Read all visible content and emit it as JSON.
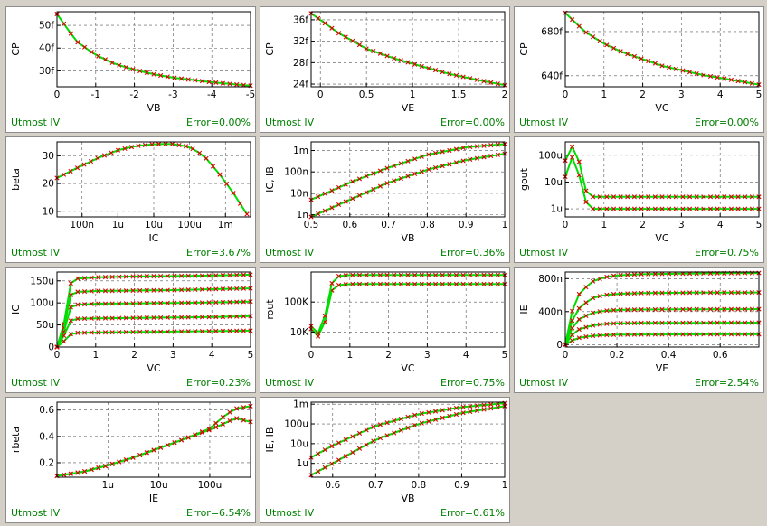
{
  "colors": {
    "measured": "#e00000",
    "simulated": "#00dd00",
    "footer_text": "#008000",
    "grid": "#555555"
  },
  "chart_data": [
    {
      "id": "cp-vb",
      "type": "scatter",
      "xlabel": "VB",
      "ylabel": "CP",
      "xlim": [
        0,
        -5
      ],
      "ylim": [
        23,
        56
      ],
      "yscale": "linear",
      "xticks": [
        {
          "v": 0,
          "t": "0"
        },
        {
          "v": -1,
          "t": "-1"
        },
        {
          "v": -2,
          "t": "-2"
        },
        {
          "v": -3,
          "t": "-3"
        },
        {
          "v": -4,
          "t": "-4"
        },
        {
          "v": -5,
          "t": "-5"
        }
      ],
      "yticks": [
        {
          "v": 30,
          "t": "30f"
        },
        {
          "v": 40,
          "t": "40f"
        },
        {
          "v": 50,
          "t": "50f"
        }
      ],
      "footer": {
        "tool": "Utmost IV",
        "error": "Error=0.00%"
      },
      "series": [
        {
          "x": [
            0,
            -0.5,
            -1,
            -1.5,
            -2,
            -2.5,
            -3,
            -3.5,
            -4,
            -4.5,
            -5
          ],
          "y": [
            55,
            43,
            37,
            33,
            30.5,
            28.5,
            27,
            26,
            25,
            24.2,
            23.5
          ]
        }
      ]
    },
    {
      "id": "cp-ve",
      "type": "scatter",
      "xlabel": "VE",
      "ylabel": "CP",
      "xlim": [
        -0.1,
        2
      ],
      "ylim": [
        23.5,
        37.5
      ],
      "yscale": "linear",
      "xticks": [
        {
          "v": 0,
          "t": "0"
        },
        {
          "v": 0.5,
          "t": "0.5"
        },
        {
          "v": 1,
          "t": "1"
        },
        {
          "v": 1.5,
          "t": "1.5"
        },
        {
          "v": 2,
          "t": "2"
        }
      ],
      "yticks": [
        {
          "v": 24,
          "t": "24f"
        },
        {
          "v": 28,
          "t": "28f"
        },
        {
          "v": 32,
          "t": "32f"
        },
        {
          "v": 36,
          "t": "36f"
        }
      ],
      "footer": {
        "tool": "Utmost IV",
        "error": "Error=0.00%"
      },
      "series": [
        {
          "x": [
            -0.1,
            0.2,
            0.5,
            0.8,
            1.1,
            1.4,
            1.7,
            2
          ],
          "y": [
            37.2,
            33.5,
            30.6,
            28.8,
            27.3,
            25.9,
            24.8,
            23.8
          ]
        }
      ]
    },
    {
      "id": "cp-vc",
      "type": "scatter",
      "xlabel": "VC",
      "ylabel": "CP",
      "xlim": [
        0,
        5
      ],
      "ylim": [
        630,
        698
      ],
      "yscale": "linear",
      "xticks": [
        {
          "v": 0,
          "t": "0"
        },
        {
          "v": 1,
          "t": "1"
        },
        {
          "v": 2,
          "t": "2"
        },
        {
          "v": 3,
          "t": "3"
        },
        {
          "v": 4,
          "t": "4"
        },
        {
          "v": 5,
          "t": "5"
        }
      ],
      "yticks": [
        {
          "v": 640,
          "t": "640f"
        },
        {
          "v": 680,
          "t": "680f"
        }
      ],
      "footer": {
        "tool": "Utmost IV",
        "error": "Error=0.00%"
      },
      "series": [
        {
          "x": [
            0,
            0.5,
            1,
            1.5,
            2,
            2.5,
            3,
            3.5,
            4,
            4.5,
            5
          ],
          "y": [
            697,
            680,
            669,
            661,
            655,
            649,
            645,
            641,
            638,
            635,
            632
          ]
        }
      ]
    },
    {
      "id": "beta-ic",
      "type": "scatter",
      "xlabel": "IC",
      "ylabel": "beta",
      "xlim": [
        -7.7,
        -2.3
      ],
      "ylim": [
        8,
        35
      ],
      "yscale": "linear",
      "xticks": [
        {
          "v": -7,
          "t": "100n"
        },
        {
          "v": -6,
          "t": "1u"
        },
        {
          "v": -5,
          "t": "10u"
        },
        {
          "v": -4,
          "t": "100u"
        },
        {
          "v": -3,
          "t": "1m"
        }
      ],
      "yticks": [
        {
          "v": 10,
          "t": "10"
        },
        {
          "v": 20,
          "t": "20"
        },
        {
          "v": 30,
          "t": "30"
        }
      ],
      "footer": {
        "tool": "Utmost IV",
        "error": "Error=3.67%"
      },
      "series": [
        {
          "x": [
            -7.7,
            -7,
            -6.5,
            -6,
            -5.5,
            -5,
            -4.5,
            -4,
            -3.6,
            -3.2,
            -2.8,
            -2.4
          ],
          "y": [
            22,
            26.5,
            29.5,
            32,
            33.5,
            34.2,
            34.3,
            33.2,
            30,
            24,
            17,
            9
          ]
        }
      ]
    },
    {
      "id": "ic-ib-vb",
      "type": "scatter",
      "xlabel": "VB",
      "ylabel": "IC, IB",
      "xlim": [
        0.5,
        1
      ],
      "ylim": [
        -0.1,
        3.4
      ],
      "yscale": "log",
      "xticks": [
        {
          "v": 0.5,
          "t": "0.5"
        },
        {
          "v": 0.6,
          "t": "0.6"
        },
        {
          "v": 0.7,
          "t": "0.7"
        },
        {
          "v": 0.8,
          "t": "0.8"
        },
        {
          "v": 0.9,
          "t": "0.9"
        },
        {
          "v": 1,
          "t": "1"
        }
      ],
      "yticks": [
        {
          "v": 0,
          "t": "1n"
        },
        {
          "v": 1,
          "t": "10n"
        },
        {
          "v": 2,
          "t": "100n"
        },
        {
          "v": 3,
          "t": "1m"
        }
      ],
      "footer": {
        "tool": "Utmost IV",
        "error": "Error=0.36%"
      },
      "series": [
        {
          "x": [
            0.5,
            0.6,
            0.7,
            0.8,
            0.9,
            1
          ],
          "y": [
            0.7,
            1.5,
            2.2,
            2.8,
            3.15,
            3.3
          ]
        },
        {
          "x": [
            0.5,
            0.6,
            0.7,
            0.8,
            0.9,
            1
          ],
          "y": [
            -0.1,
            0.7,
            1.5,
            2.1,
            2.55,
            2.85
          ]
        }
      ]
    },
    {
      "id": "gout-vc",
      "type": "scatter",
      "xlabel": "VC",
      "ylabel": "gout",
      "xlim": [
        0,
        5
      ],
      "ylim": [
        -0.3,
        2.5
      ],
      "yscale": "log",
      "xticks": [
        {
          "v": 0,
          "t": "0"
        },
        {
          "v": 1,
          "t": "1"
        },
        {
          "v": 2,
          "t": "2"
        },
        {
          "v": 3,
          "t": "3"
        },
        {
          "v": 4,
          "t": "4"
        },
        {
          "v": 5,
          "t": "5"
        }
      ],
      "yticks": [
        {
          "v": 0,
          "t": "1u"
        },
        {
          "v": 1,
          "t": "10u"
        },
        {
          "v": 2,
          "t": "100u"
        }
      ],
      "footer": {
        "tool": "Utmost IV",
        "error": "Error=0.75%"
      },
      "series": [
        {
          "x": [
            0,
            0.1,
            0.2,
            0.3,
            0.4,
            0.5,
            0.6,
            1,
            2,
            3,
            4,
            5
          ],
          "y": [
            1.8,
            2.4,
            2.3,
            2.1,
            1.5,
            0.8,
            0.45,
            0.45,
            0.45,
            0.45,
            0.45,
            0.45
          ]
        },
        {
          "x": [
            0,
            0.1,
            0.2,
            0.3,
            0.4,
            0.5,
            0.6,
            1,
            2,
            3,
            4,
            5
          ],
          "y": [
            1.2,
            2.0,
            1.9,
            1.6,
            1.0,
            0.4,
            0.0,
            0.0,
            0.0,
            0.0,
            0.0,
            0.0
          ]
        }
      ]
    },
    {
      "id": "ic-vc",
      "type": "scatter",
      "xlabel": "VC",
      "ylabel": "IC",
      "xlim": [
        0,
        5
      ],
      "ylim": [
        0,
        170
      ],
      "yscale": "linear",
      "xticks": [
        {
          "v": 0,
          "t": "0"
        },
        {
          "v": 1,
          "t": "1"
        },
        {
          "v": 2,
          "t": "2"
        },
        {
          "v": 3,
          "t": "3"
        },
        {
          "v": 4,
          "t": "4"
        },
        {
          "v": 5,
          "t": "5"
        }
      ],
      "yticks": [
        {
          "v": 0,
          "t": "0"
        },
        {
          "v": 50,
          "t": "50u"
        },
        {
          "v": 100,
          "t": "100u"
        },
        {
          "v": 150,
          "t": "150u"
        }
      ],
      "footer": {
        "tool": "Utmost IV",
        "error": "Error=0.23%"
      },
      "series": [
        {
          "x": [
            0,
            0.1,
            0.2,
            0.3,
            0.5,
            1,
            2,
            3,
            4,
            5
          ],
          "y": [
            0,
            25,
            60,
            140,
            155,
            158,
            160,
            161,
            162,
            164
          ]
        },
        {
          "x": [
            0,
            0.1,
            0.2,
            0.3,
            0.5,
            1,
            2,
            3,
            4,
            5
          ],
          "y": [
            0,
            20,
            50,
            115,
            125,
            127,
            128,
            129,
            131,
            133
          ]
        },
        {
          "x": [
            0,
            0.1,
            0.2,
            0.3,
            0.5,
            1,
            2,
            3,
            4,
            5
          ],
          "y": [
            0,
            15,
            40,
            88,
            96,
            98,
            99,
            100,
            101,
            103
          ]
        },
        {
          "x": [
            0,
            0.1,
            0.2,
            0.3,
            0.5,
            1,
            2,
            3,
            4,
            5
          ],
          "y": [
            0,
            10,
            30,
            58,
            64,
            65,
            66,
            67,
            68,
            70
          ]
        },
        {
          "x": [
            0,
            0.1,
            0.2,
            0.3,
            0.5,
            1,
            2,
            3,
            4,
            5
          ],
          "y": [
            0,
            5,
            15,
            28,
            32,
            33,
            34,
            35,
            36,
            37
          ]
        }
      ]
    },
    {
      "id": "rout-vc",
      "type": "scatter",
      "xlabel": "VC",
      "ylabel": "rout",
      "xlim": [
        0,
        5
      ],
      "ylim": [
        3.5,
        6.0
      ],
      "yscale": "log",
      "xticks": [
        {
          "v": 0,
          "t": "0"
        },
        {
          "v": 1,
          "t": "1"
        },
        {
          "v": 2,
          "t": "2"
        },
        {
          "v": 3,
          "t": "3"
        },
        {
          "v": 4,
          "t": "4"
        },
        {
          "v": 5,
          "t": "5"
        }
      ],
      "yticks": [
        {
          "v": 4,
          "t": "10K"
        },
        {
          "v": 5,
          "t": "100K"
        }
      ],
      "footer": {
        "tool": "Utmost IV",
        "error": "Error=0.75%"
      },
      "series": [
        {
          "x": [
            0,
            0.1,
            0.2,
            0.3,
            0.4,
            0.5,
            0.6,
            1,
            2,
            3,
            4,
            5
          ],
          "y": [
            4.1,
            3.7,
            3.9,
            4.0,
            4.6,
            5.3,
            5.55,
            5.6,
            5.6,
            5.6,
            5.6,
            5.6
          ]
        },
        {
          "x": [
            0,
            0.1,
            0.2,
            0.3,
            0.4,
            0.5,
            0.6,
            1,
            2,
            3,
            4,
            5
          ],
          "y": [
            4.2,
            3.8,
            4.0,
            4.2,
            4.8,
            5.5,
            5.85,
            5.9,
            5.9,
            5.9,
            5.9,
            5.9
          ]
        }
      ]
    },
    {
      "id": "ie-ve",
      "type": "scatter",
      "xlabel": "VE",
      "ylabel": "IE",
      "xlim": [
        0,
        0.75
      ],
      "ylim": [
        -30,
        880
      ],
      "yscale": "linear",
      "xticks": [
        {
          "v": 0,
          "t": "0"
        },
        {
          "v": 0.2,
          "t": "0.2"
        },
        {
          "v": 0.4,
          "t": "0.4"
        },
        {
          "v": 0.6,
          "t": "0.6"
        }
      ],
      "yticks": [
        {
          "v": 0,
          "t": "0"
        },
        {
          "v": 400,
          "t": "400n"
        },
        {
          "v": 800,
          "t": "800n"
        }
      ],
      "footer": {
        "tool": "Utmost IV",
        "error": "Error=2.54%"
      },
      "series": [
        {
          "x": [
            0,
            0.02,
            0.05,
            0.1,
            0.15,
            0.2,
            0.3,
            0.5,
            0.75
          ],
          "y": [
            0,
            350,
            600,
            760,
            815,
            840,
            855,
            862,
            868
          ]
        },
        {
          "x": [
            0,
            0.02,
            0.05,
            0.1,
            0.15,
            0.2,
            0.3,
            0.5,
            0.75
          ],
          "y": [
            0,
            250,
            430,
            560,
            600,
            615,
            625,
            630,
            632
          ]
        },
        {
          "x": [
            0,
            0.02,
            0.05,
            0.1,
            0.15,
            0.2,
            0.3,
            0.5,
            0.75
          ],
          "y": [
            0,
            170,
            300,
            380,
            410,
            420,
            425,
            428,
            430
          ]
        },
        {
          "x": [
            0,
            0.02,
            0.05,
            0.1,
            0.15,
            0.2,
            0.3,
            0.5,
            0.75
          ],
          "y": [
            0,
            100,
            180,
            230,
            250,
            258,
            262,
            264,
            266
          ]
        },
        {
          "x": [
            0,
            0.02,
            0.05,
            0.1,
            0.15,
            0.2,
            0.3,
            0.5,
            0.75
          ],
          "y": [
            0,
            40,
            80,
            105,
            115,
            120,
            122,
            124,
            125
          ]
        }
      ]
    },
    {
      "id": "rbeta-ie",
      "type": "scatter",
      "xlabel": "IE",
      "ylabel": "rbeta",
      "xlim": [
        -7,
        -3.2
      ],
      "ylim": [
        0.09,
        0.66
      ],
      "yscale": "linear",
      "xticks": [
        {
          "v": -6,
          "t": "1u"
        },
        {
          "v": -5,
          "t": "10u"
        },
        {
          "v": -4,
          "t": "100u"
        }
      ],
      "yticks": [
        {
          "v": 0.2,
          "t": "0.2"
        },
        {
          "v": 0.4,
          "t": "0.4"
        },
        {
          "v": 0.6,
          "t": "0.6"
        }
      ],
      "footer": {
        "tool": "Utmost IV",
        "error": "Error=6.54%"
      },
      "series": [
        {
          "x": [
            -7,
            -6.5,
            -6,
            -5.5,
            -5,
            -4.5,
            -4,
            -3.7,
            -3.5,
            -3.2
          ],
          "y": [
            0.1,
            0.13,
            0.18,
            0.24,
            0.31,
            0.38,
            0.45,
            0.5,
            0.54,
            0.51
          ]
        },
        {
          "x": [
            -7,
            -6.5,
            -6,
            -5.5,
            -5,
            -4.5,
            -4,
            -3.7,
            -3.5,
            -3.2
          ],
          "y": [
            0.1,
            0.13,
            0.18,
            0.24,
            0.31,
            0.38,
            0.46,
            0.56,
            0.61,
            0.63
          ]
        }
      ]
    },
    {
      "id": "ie-ib-vb",
      "type": "scatter",
      "xlabel": "VB",
      "ylabel": "IE, IB",
      "xlim": [
        0.55,
        1
      ],
      "ylim": [
        -0.7,
        3.1
      ],
      "yscale": "log",
      "xticks": [
        {
          "v": 0.6,
          "t": "0.6"
        },
        {
          "v": 0.7,
          "t": "0.7"
        },
        {
          "v": 0.8,
          "t": "0.8"
        },
        {
          "v": 0.9,
          "t": "0.9"
        },
        {
          "v": 1,
          "t": "1"
        }
      ],
      "yticks": [
        {
          "v": 0,
          "t": "1u"
        },
        {
          "v": 1,
          "t": "10u"
        },
        {
          "v": 2,
          "t": "100u"
        },
        {
          "v": 3,
          "t": "1m"
        }
      ],
      "footer": {
        "tool": "Utmost IV",
        "error": "Error=0.61%"
      },
      "series": [
        {
          "x": [
            0.55,
            0.6,
            0.7,
            0.8,
            0.9,
            1
          ],
          "y": [
            0.3,
            0.9,
            1.9,
            2.5,
            2.85,
            3.05
          ]
        },
        {
          "x": [
            0.55,
            0.6,
            0.7,
            0.8,
            0.9,
            1
          ],
          "y": [
            -0.6,
            0.0,
            1.2,
            2.0,
            2.55,
            2.9
          ]
        }
      ]
    }
  ]
}
